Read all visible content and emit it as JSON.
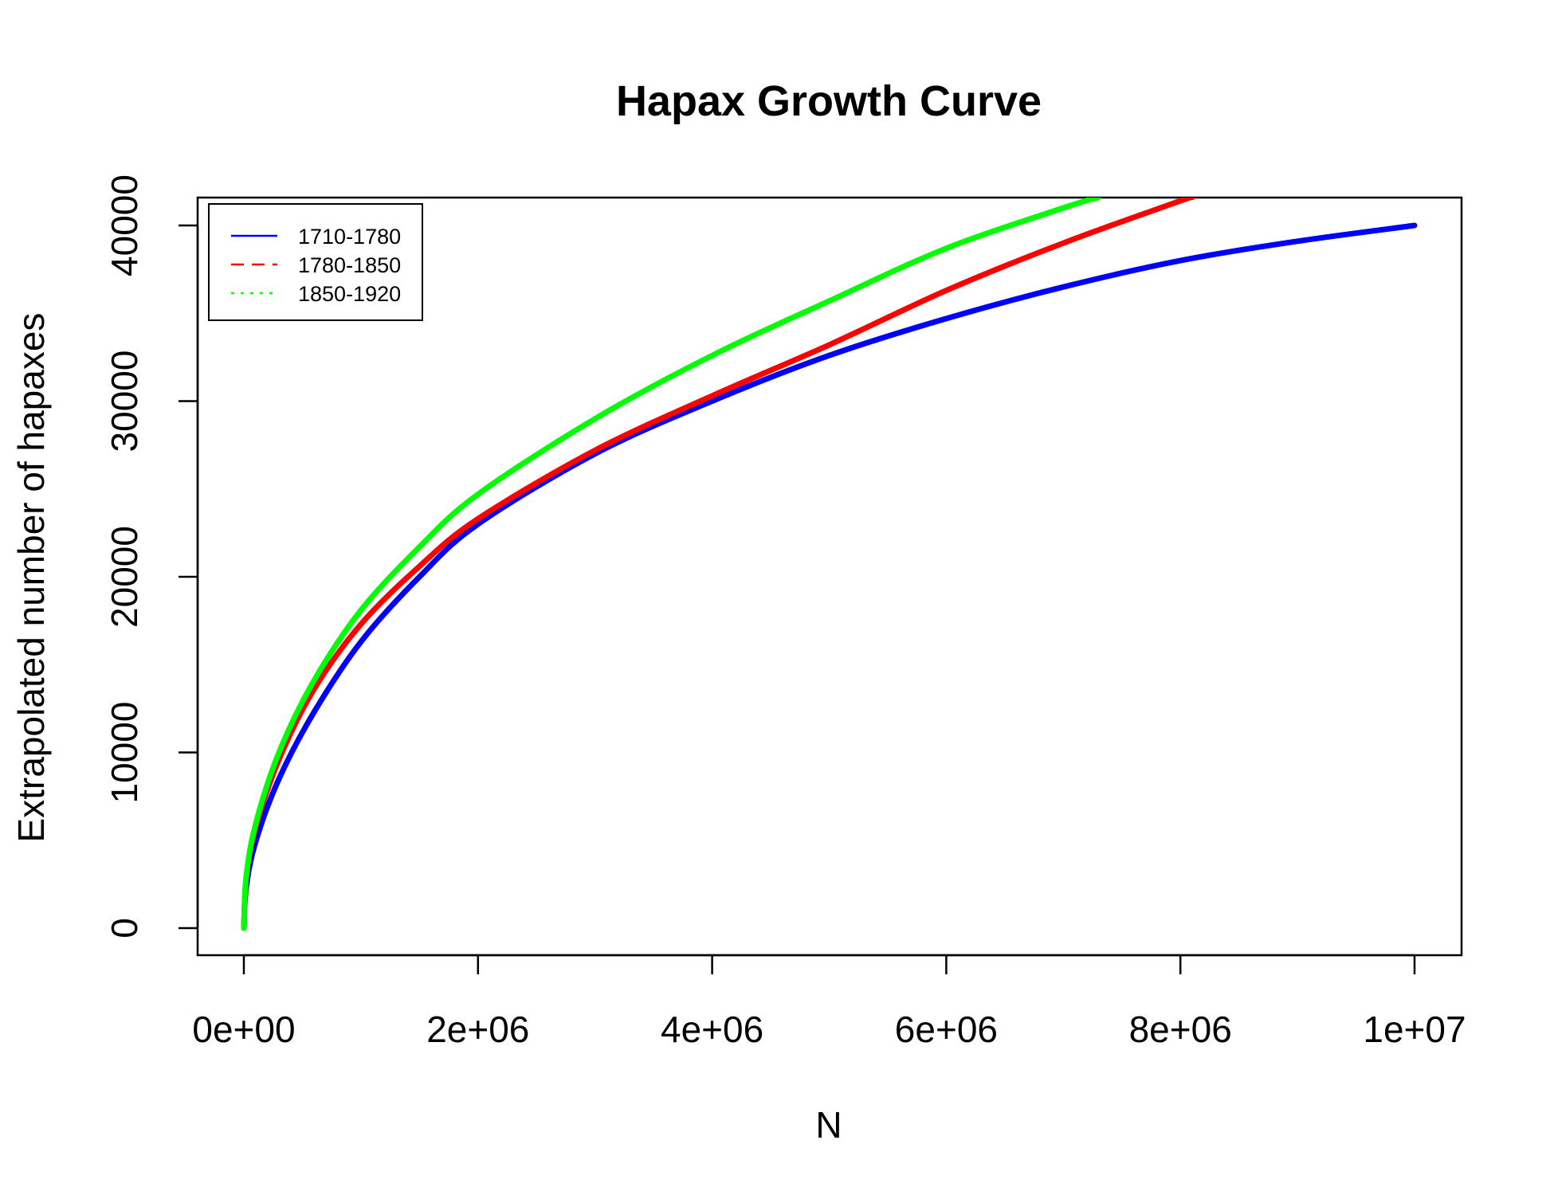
{
  "chart_data": {
    "type": "line",
    "title": "Hapax Growth Curve",
    "xlabel": "N",
    "ylabel": "Extrapolated number of hapaxes",
    "xlim": [
      -400000,
      10400000
    ],
    "ylim": [
      -1600000,
      41600
    ],
    "x_ticks": [
      0,
      2000000,
      4000000,
      6000000,
      8000000,
      10000000
    ],
    "x_tick_labels": [
      "0e+00",
      "2e+06",
      "4e+06",
      "6e+06",
      "8e+06",
      "1e+07"
    ],
    "y_ticks": [
      0,
      10000,
      20000,
      30000,
      40000
    ],
    "y_tick_labels": [
      "0",
      "10000",
      "20000",
      "30000",
      "40000"
    ],
    "grid": false,
    "legend_position": "top-left",
    "series": [
      {
        "name": "1710-1780",
        "color": "#0000ff",
        "dash": "solid",
        "x": [
          0,
          20000,
          100000,
          300000,
          600000,
          1000000,
          1500000,
          2000000,
          3000000,
          4000000,
          5000000,
          6000000,
          7000000,
          8000000,
          9000000,
          10000000
        ],
        "y": [
          0,
          2300,
          4900,
          8500,
          12300,
          16300,
          20000,
          23000,
          27000,
          30000,
          32600,
          34700,
          36500,
          38000,
          39100,
          40000
        ]
      },
      {
        "name": "1780-1850",
        "color": "#ff0000",
        "dash": "dashed",
        "x": [
          0,
          20000,
          100000,
          300000,
          600000,
          1000000,
          1500000,
          2000000,
          3000000,
          4000000,
          5000000,
          6000000,
          7000000,
          8000000,
          8100000
        ],
        "y": [
          0,
          2800,
          5700,
          9600,
          13600,
          17300,
          20600,
          23300,
          27200,
          30300,
          33200,
          36300,
          39000,
          41400,
          41600
        ]
      },
      {
        "name": "1850-1920",
        "color": "#00ff00",
        "dash": "dotted",
        "x": [
          0,
          20000,
          100000,
          300000,
          600000,
          1000000,
          1500000,
          2000000,
          3000000,
          4000000,
          5000000,
          6000000,
          7000000,
          7300000
        ],
        "y": [
          0,
          2900,
          5900,
          10000,
          14100,
          18100,
          21700,
          24700,
          29000,
          32600,
          35700,
          38700,
          41000,
          41600
        ]
      }
    ]
  }
}
